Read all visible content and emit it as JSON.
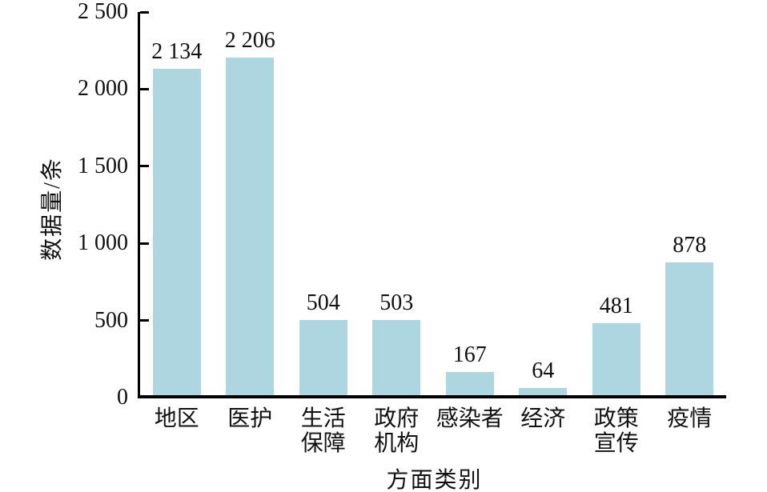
{
  "figure": {
    "background": "#ffffff",
    "text_color": "#111111"
  },
  "chart_data": {
    "type": "bar",
    "title": "",
    "xlabel": "方面类别",
    "ylabel": "数据量/条",
    "categories": [
      "地区",
      "医护",
      "生活\n保障",
      "政府\n机构",
      "感染者",
      "经济",
      "政策\n宣传",
      "疫情"
    ],
    "values": [
      2134,
      2206,
      504,
      503,
      167,
      64,
      481,
      878
    ],
    "value_labels": [
      "2 134",
      "2 206",
      "504",
      "503",
      "167",
      "64",
      "481",
      "878"
    ],
    "ylim": [
      0,
      2500
    ],
    "yticks": [
      {
        "value": 0,
        "label": "0"
      },
      {
        "value": 500,
        "label": "500"
      },
      {
        "value": 1000,
        "label": "1 000"
      },
      {
        "value": 1500,
        "label": "1 500"
      },
      {
        "value": 2000,
        "label": "2 000"
      },
      {
        "value": 2500,
        "label": "2 500"
      }
    ],
    "grid": false,
    "legend_position": "none",
    "bar_color": "#aed6e0",
    "axis_color": "#000000"
  }
}
